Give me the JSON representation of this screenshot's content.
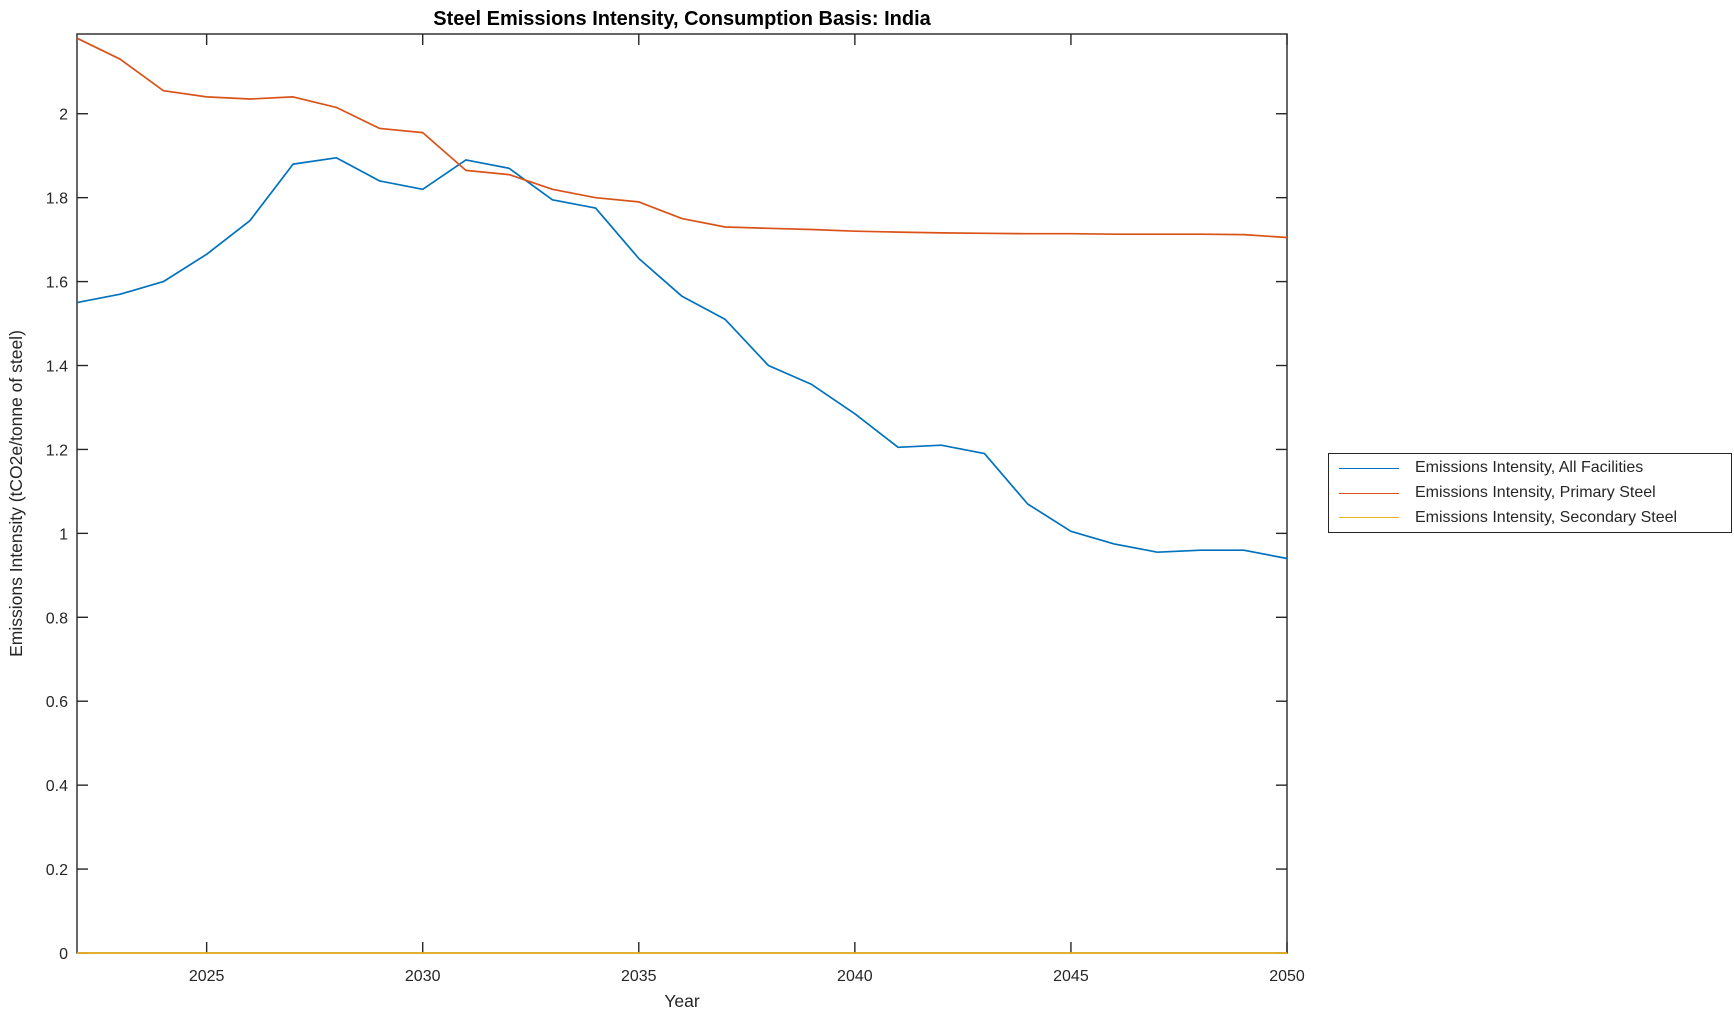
{
  "title": "Steel Emissions Intensity, Consumption Basis: India",
  "axis_color": "#262626",
  "chart_data": {
    "type": "line",
    "title": "Steel Emissions Intensity, Consumption Basis: India",
    "xlabel": "Year",
    "ylabel": "Emissions Intensity (tCO2e/tonne of steel)",
    "xlim": [
      2022,
      2050
    ],
    "ylim": [
      0,
      2.19
    ],
    "x_ticks": [
      2025,
      2030,
      2035,
      2040,
      2045,
      2050
    ],
    "y_ticks": [
      0,
      0.2,
      0.4,
      0.6,
      0.8,
      1,
      1.2,
      1.4,
      1.6,
      1.8,
      2
    ],
    "grid": false,
    "legend_position": "outside-right",
    "x": [
      2022,
      2023,
      2024,
      2025,
      2026,
      2027,
      2028,
      2029,
      2030,
      2031,
      2032,
      2033,
      2034,
      2035,
      2036,
      2037,
      2038,
      2039,
      2040,
      2041,
      2042,
      2043,
      2044,
      2045,
      2046,
      2047,
      2048,
      2049,
      2050
    ],
    "series": [
      {
        "name": "Emissions Intensity, All Facilities",
        "color": "#0072BD",
        "values": [
          1.55,
          1.57,
          1.6,
          1.665,
          1.745,
          1.88,
          1.895,
          1.84,
          1.82,
          1.89,
          1.87,
          1.795,
          1.775,
          1.655,
          1.565,
          1.51,
          1.4,
          1.355,
          1.285,
          1.205,
          1.21,
          1.19,
          1.07,
          1.005,
          0.975,
          0.955,
          0.96,
          0.96,
          0.94
        ]
      },
      {
        "name": "Emissions Intensity, Primary Steel",
        "color": "#D95319",
        "values": [
          2.18,
          2.13,
          2.055,
          2.04,
          2.035,
          2.04,
          2.015,
          1.965,
          1.955,
          1.865,
          1.855,
          1.82,
          1.8,
          1.79,
          1.75,
          1.73,
          1.727,
          1.724,
          1.72,
          1.718,
          1.716,
          1.715,
          1.714,
          1.714,
          1.713,
          1.713,
          1.713,
          1.712,
          1.705
        ]
      },
      {
        "name": "Emissions Intensity, Secondary Steel",
        "color": "#EDB120",
        "values": [
          0,
          0,
          0,
          0,
          0,
          0,
          0,
          0,
          0,
          0,
          0,
          0,
          0,
          0,
          0,
          0,
          0,
          0,
          0,
          0,
          0,
          0,
          0,
          0,
          0,
          0,
          0,
          0,
          0
        ]
      }
    ]
  }
}
